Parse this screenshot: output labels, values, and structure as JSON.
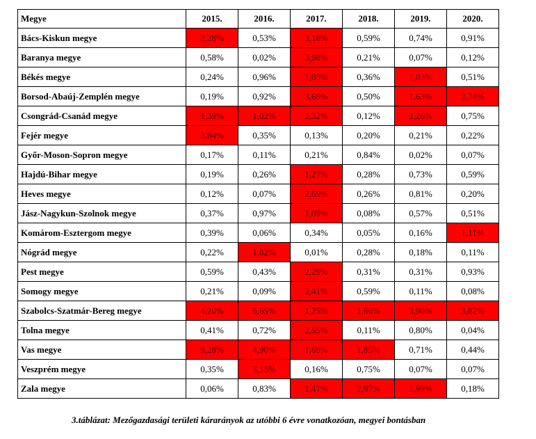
{
  "table": {
    "headers": [
      "Megye",
      "2015.",
      "2016.",
      "2017.",
      "2018.",
      "2019.",
      "2020."
    ],
    "highlight_color": "#ff0000",
    "rows": [
      {
        "county": "Bács-Kiskun megye",
        "values": [
          "2,28%",
          "0,53%",
          "3,18%",
          "0,59%",
          "0,74%",
          "0,91%"
        ],
        "highlight": [
          true,
          false,
          true,
          false,
          false,
          false
        ]
      },
      {
        "county": "Baranya megye",
        "values": [
          "0,58%",
          "0,02%",
          "3,98%",
          "0,21%",
          "0,07%",
          "0,12%"
        ],
        "highlight": [
          false,
          false,
          true,
          false,
          false,
          false
        ]
      },
      {
        "county": "Békés megye",
        "values": [
          "0,24%",
          "0,96%",
          "1,03%",
          "0,36%",
          "1,03%",
          "0,51%"
        ],
        "highlight": [
          false,
          false,
          true,
          false,
          true,
          false
        ]
      },
      {
        "county": "Borsod-Abaúj-Zemplén megye",
        "values": [
          "0,19%",
          "0,92%",
          "3,69%",
          "0,50%",
          "1,63%",
          "2,74%"
        ],
        "highlight": [
          false,
          false,
          true,
          false,
          true,
          true
        ]
      },
      {
        "county": "Csongrád-Csanád megye",
        "values": [
          "1,39%",
          "1,02%",
          "2,32%",
          "0,12%",
          "2,26%",
          "0,75%"
        ],
        "highlight": [
          true,
          true,
          true,
          false,
          true,
          false
        ]
      },
      {
        "county": "Fejér megye",
        "values": [
          "3,04%",
          "0,35%",
          "0,13%",
          "0,20%",
          "0,21%",
          "0,22%"
        ],
        "highlight": [
          true,
          false,
          false,
          false,
          false,
          false
        ]
      },
      {
        "county": "Győr-Moson-Sopron megye",
        "values": [
          "0,17%",
          "0,11%",
          "0,21%",
          "0,84%",
          "0,02%",
          "0,07%"
        ],
        "highlight": [
          false,
          false,
          false,
          false,
          false,
          false
        ]
      },
      {
        "county": "Hajdú-Bihar megye",
        "values": [
          "0,19%",
          "0,26%",
          "1,27%",
          "0,28%",
          "0,73%",
          "0,59%"
        ],
        "highlight": [
          false,
          false,
          true,
          false,
          false,
          false
        ]
      },
      {
        "county": "Heves megye",
        "values": [
          "0,12%",
          "0,07%",
          "2,69%",
          "0,26%",
          "0,81%",
          "0,20%"
        ],
        "highlight": [
          false,
          false,
          true,
          false,
          false,
          false
        ]
      },
      {
        "county": "Jász-Nagykun-Szolnok megye",
        "values": [
          "0,37%",
          "0,97%",
          "1,09%",
          "0,08%",
          "0,57%",
          "0,51%"
        ],
        "highlight": [
          false,
          false,
          true,
          false,
          false,
          false
        ]
      },
      {
        "county": "Komárom-Esztergom megye",
        "values": [
          "0,39%",
          "0,06%",
          "0,34%",
          "0,05%",
          "0,16%",
          "1,11%"
        ],
        "highlight": [
          false,
          false,
          false,
          false,
          false,
          true
        ]
      },
      {
        "county": "Nógrád megye",
        "values": [
          "0,22%",
          "1,82%",
          "0,01%",
          "0,28%",
          "0,18%",
          "0,11%"
        ],
        "highlight": [
          false,
          true,
          false,
          false,
          false,
          false
        ]
      },
      {
        "county": "Pest megye",
        "values": [
          "0,59%",
          "0,43%",
          "2,29%",
          "0,31%",
          "0,31%",
          "0,93%"
        ],
        "highlight": [
          false,
          false,
          true,
          false,
          false,
          false
        ]
      },
      {
        "county": "Somogy megye",
        "values": [
          "0,21%",
          "0,09%",
          "2,41%",
          "0,59%",
          "0,11%",
          "0,08%"
        ],
        "highlight": [
          false,
          false,
          true,
          false,
          false,
          false
        ]
      },
      {
        "county": "Szabolcs-Szatmár-Bereg megye",
        "values": [
          "4,20%",
          "6,65%",
          "1,25%",
          "1,66%",
          "3,90%",
          "3,82%"
        ],
        "highlight": [
          true,
          true,
          true,
          true,
          true,
          true
        ]
      },
      {
        "county": "Tolna megye",
        "values": [
          "0,41%",
          "0,72%",
          "2,55%",
          "0,11%",
          "0,80%",
          "0,04%"
        ],
        "highlight": [
          false,
          false,
          true,
          false,
          false,
          false
        ]
      },
      {
        "county": "Vas megye",
        "values": [
          "9,28%",
          "4,90%",
          "1,69%",
          "1,85%",
          "0,71%",
          "0,44%"
        ],
        "highlight": [
          true,
          true,
          true,
          true,
          false,
          false
        ]
      },
      {
        "county": "Veszprém megye",
        "values": [
          "0,35%",
          "3,15%",
          "0,16%",
          "0,75%",
          "0,07%",
          "0,07%"
        ],
        "highlight": [
          false,
          true,
          false,
          false,
          false,
          false
        ]
      },
      {
        "county": "Zala megye",
        "values": [
          "0,06%",
          "0,83%",
          "1,47%",
          "2,97%",
          "1,99%",
          "0,18%"
        ],
        "highlight": [
          false,
          false,
          true,
          true,
          true,
          false
        ]
      }
    ]
  },
  "caption": "3.táblázat: Mezőgazdasági területi kárarányok az utóbbi 6 évre vonatkozóan, megyei bontásban"
}
